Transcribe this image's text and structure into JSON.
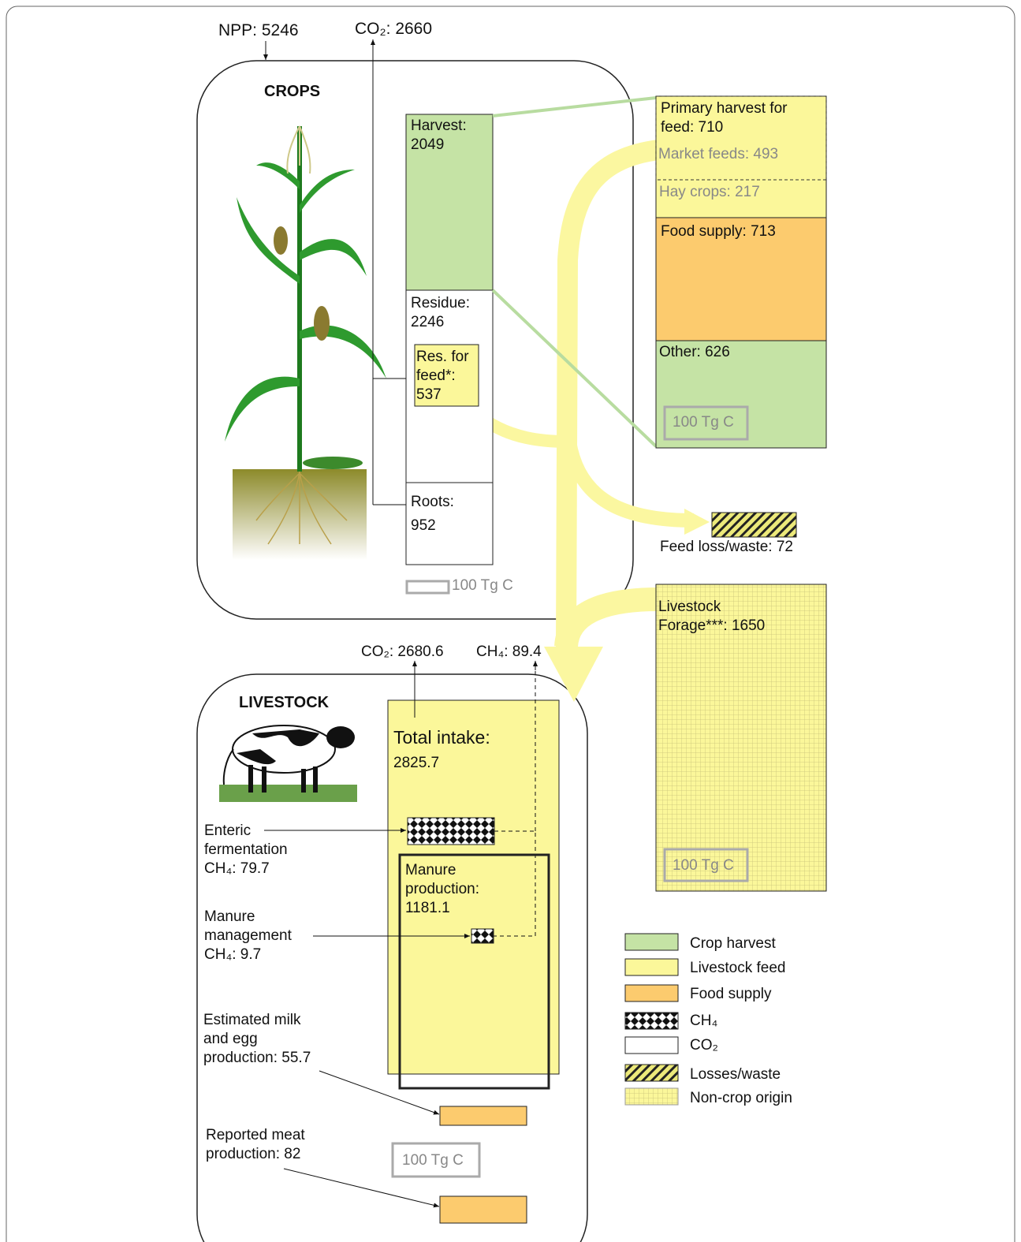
{
  "crops": {
    "title": "CROPS",
    "npp": "NPP: 5246",
    "co2": "CO₂: 2660",
    "harvest": "Harvest:\n2049",
    "residue": "Residue:\n2246",
    "residue_for_feed": "Res. for\nfeed*:\n537",
    "roots": "Roots:\n952",
    "scale": "100 Tg C"
  },
  "harvest_use": {
    "primary_feed": "Primary harvest for\nfeed: 710",
    "market_feeds": "Market feeds: 493",
    "hay_crops": "Hay crops: 217",
    "food_supply": "Food supply: 713",
    "other": "Other: 626",
    "scale": "100 Tg C"
  },
  "feed_loss": "Feed loss/waste: 72",
  "forage": {
    "label": "Livestock\nForage***: 1650",
    "scale": "100 Tg C"
  },
  "livestock": {
    "title": "LIVESTOCK",
    "co2": "CO₂: 2680.6",
    "ch4": "CH₄: 89.4",
    "total_intake": "Total intake:",
    "total_intake_value": "2825.7",
    "manure": "Manure\nproduction:\n1181.1",
    "enteric": "Enteric\nfermentation\nCH₄: 79.7",
    "manure_management": "Manure\nmanagement\nCH₄: 9.7",
    "milk_egg": "Estimated milk\nand egg\nproduction: 55.7",
    "meat": "Reported meat\nproduction: 82",
    "scale": "100 Tg C"
  },
  "legend": [
    "Crop  harvest",
    "Livestock feed",
    "Food supply",
    "CH₄",
    "CO₂",
    "Losses/waste",
    "Non-crop origin"
  ]
}
